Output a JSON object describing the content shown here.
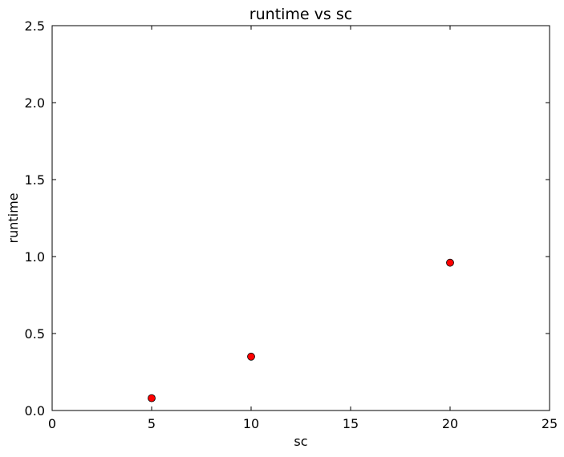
{
  "chart_data": {
    "type": "scatter",
    "title": "runtime vs sc",
    "xlabel": "sc",
    "ylabel": "runtime",
    "xlim": [
      0,
      25
    ],
    "ylim": [
      0.0,
      2.5
    ],
    "xticks": [
      0,
      5,
      10,
      15,
      20,
      25
    ],
    "xtick_labels": [
      "0",
      "5",
      "10",
      "15",
      "20",
      "25"
    ],
    "yticks": [
      0.0,
      0.5,
      1.0,
      1.5,
      2.0,
      2.5
    ],
    "ytick_labels": [
      "0.0",
      "0.5",
      "1.0",
      "1.5",
      "2.0",
      "2.5"
    ],
    "grid": false,
    "series": [
      {
        "x": [
          5,
          10,
          20
        ],
        "y": [
          0.08,
          0.35,
          0.96
        ],
        "color": "#ff0000",
        "marker": "circle"
      }
    ]
  }
}
